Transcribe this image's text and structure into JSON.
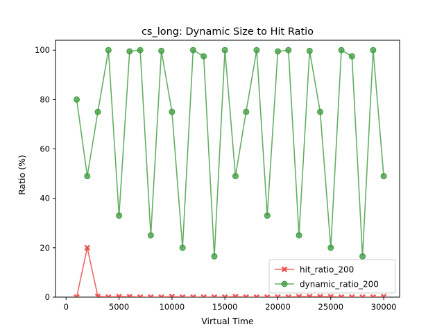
{
  "chart_data": {
    "type": "line",
    "title": "cs_long: Dynamic Size to Hit Ratio",
    "xlabel": "Virtual Time",
    "ylabel": "Ratio (%)",
    "xlim": [
      -1000,
      31500
    ],
    "ylim": [
      0,
      104
    ],
    "xticks": [
      0,
      5000,
      10000,
      15000,
      20000,
      25000,
      30000
    ],
    "yticks": [
      0,
      20,
      40,
      60,
      80,
      100
    ],
    "grid": false,
    "legend_position": "lower-right",
    "x": [
      1000,
      2000,
      3000,
      4000,
      5000,
      6000,
      7000,
      8000,
      9000,
      10000,
      11000,
      12000,
      13000,
      14000,
      15000,
      16000,
      17000,
      18000,
      19000,
      20000,
      21000,
      22000,
      23000,
      24000,
      25000,
      26000,
      27000,
      28000,
      29000,
      30000
    ],
    "series": [
      {
        "name": "hit_ratio_200",
        "color": "#e8413f",
        "marker": "x",
        "values": [
          0,
          20,
          0.3,
          0,
          0.2,
          0.2,
          0,
          0,
          0,
          0.2,
          0,
          0,
          0,
          0,
          0,
          0.2,
          0,
          0,
          0,
          0,
          0,
          0.2,
          0.2,
          0.2,
          0.2,
          0,
          0,
          0,
          0,
          0.2
        ]
      },
      {
        "name": "dynamic_ratio_200",
        "color": "#3c9a3c",
        "marker": "o",
        "values": [
          80,
          49,
          75,
          100,
          33,
          99.5,
          100,
          25,
          99.7,
          75,
          20,
          100,
          97.5,
          16.5,
          100,
          49,
          75,
          100,
          33,
          99.5,
          100,
          25,
          99.7,
          75,
          20,
          100,
          97.5,
          16.5,
          100,
          49
        ]
      }
    ]
  }
}
